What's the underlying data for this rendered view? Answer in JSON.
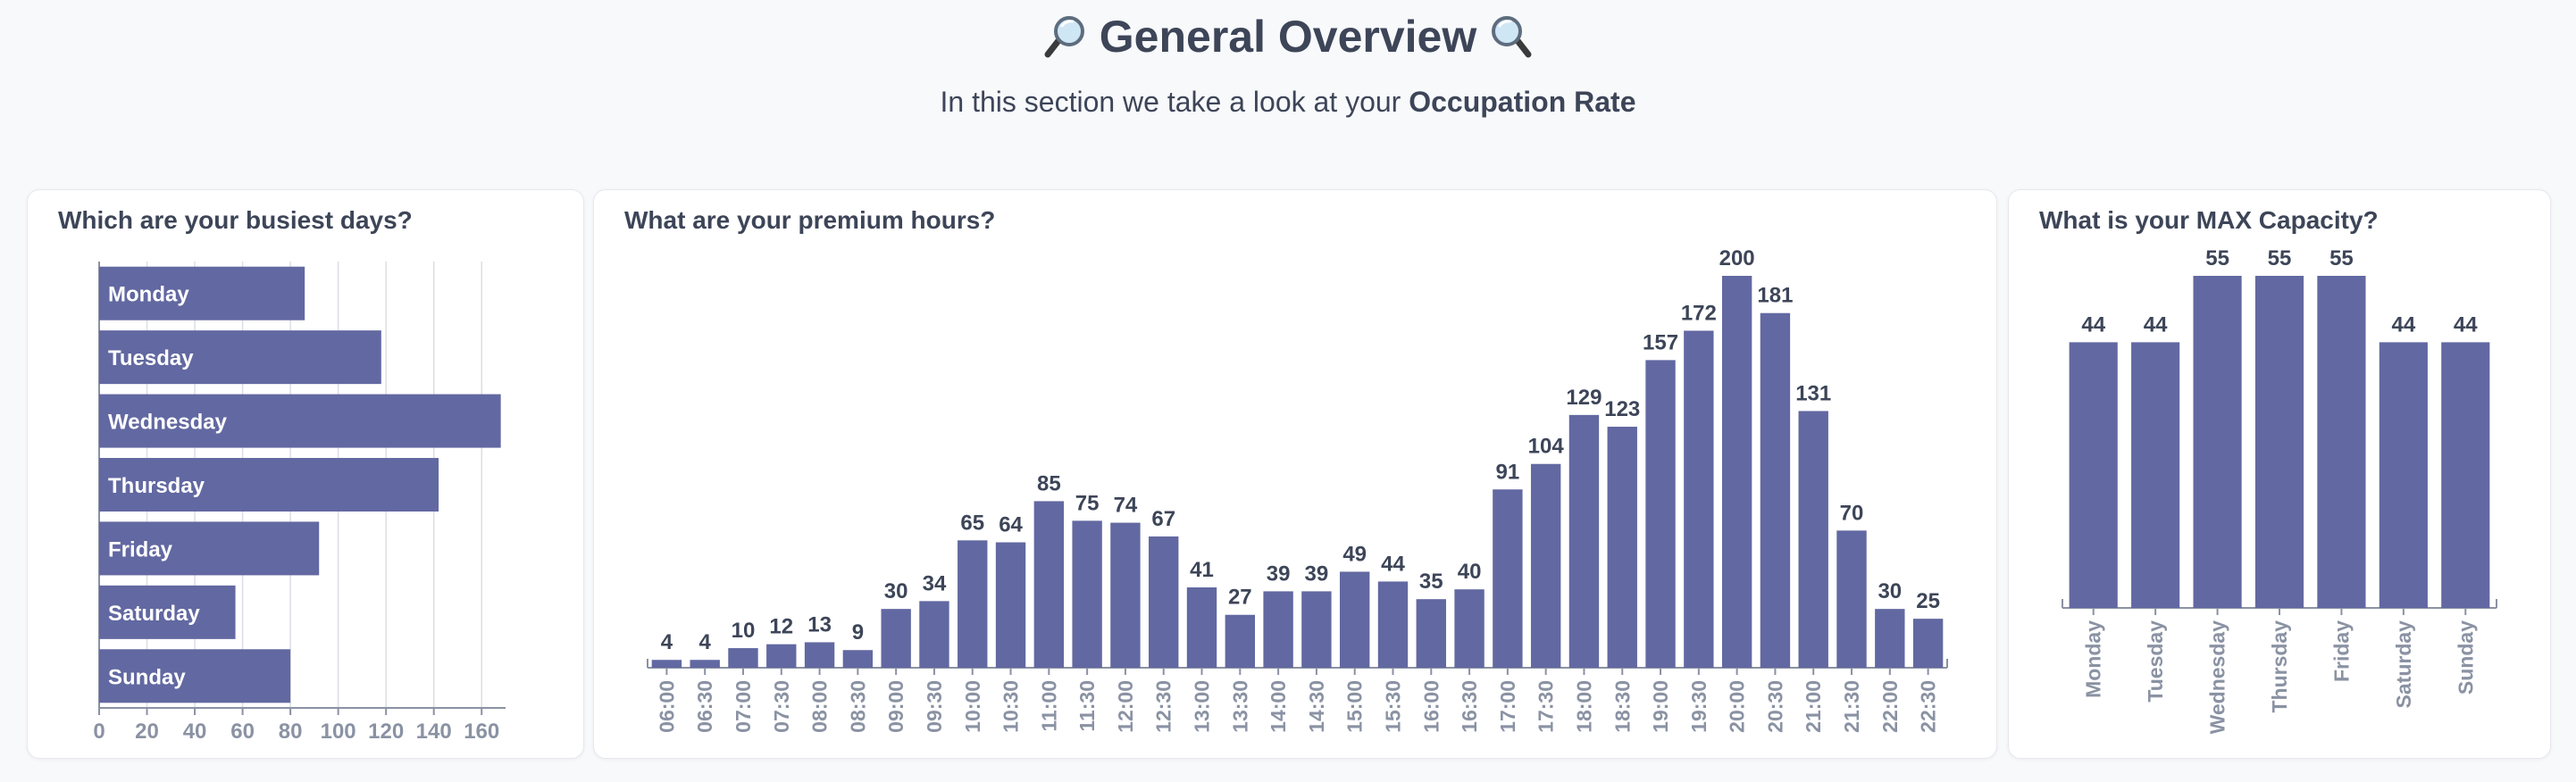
{
  "header": {
    "title": "General Overview",
    "subtitle_prefix": "In this section we take a look at your ",
    "subtitle_bold": "Occupation Rate",
    "icons": [
      "magnifier-left-icon",
      "magnifier-right-icon"
    ]
  },
  "colors": {
    "bar": "#6268a1",
    "text": "#3d4558",
    "axis": "#8a92a3",
    "grid": "#dcdde3"
  },
  "chart_data": [
    {
      "type": "bar",
      "orientation": "horizontal",
      "title": "Which are your busiest days?",
      "categories": [
        "Monday",
        "Tuesday",
        "Wednesday",
        "Thursday",
        "Friday",
        "Saturday",
        "Sunday"
      ],
      "values": [
        86,
        118,
        168,
        142,
        92,
        57,
        80
      ],
      "xlim": [
        0,
        170
      ],
      "xticks": [
        0,
        20,
        40,
        60,
        80,
        100,
        120,
        140,
        160
      ],
      "grid": true
    },
    {
      "type": "bar",
      "title": "What are your premium hours?",
      "categories": [
        "06:00",
        "06:30",
        "07:00",
        "07:30",
        "08:00",
        "08:30",
        "09:00",
        "09:30",
        "10:00",
        "10:30",
        "11:00",
        "11:30",
        "12:00",
        "12:30",
        "13:00",
        "13:30",
        "14:00",
        "14:30",
        "15:00",
        "15:30",
        "16:00",
        "16:30",
        "17:00",
        "17:30",
        "18:00",
        "18:30",
        "19:00",
        "19:30",
        "20:00",
        "20:30",
        "21:00",
        "21:30",
        "22:00",
        "22:30"
      ],
      "values": [
        4,
        4,
        10,
        12,
        13,
        9,
        30,
        34,
        65,
        64,
        85,
        75,
        74,
        67,
        41,
        27,
        39,
        39,
        49,
        44,
        35,
        40,
        91,
        104,
        129,
        123,
        157,
        172,
        200,
        181,
        131,
        70,
        30,
        25
      ],
      "ylim": [
        0,
        200
      ],
      "data_labels": true
    },
    {
      "type": "bar",
      "title": "What is your MAX Capacity?",
      "categories": [
        "Monday",
        "Tuesday",
        "Wednesday",
        "Thursday",
        "Friday",
        "Saturday",
        "Sunday"
      ],
      "values": [
        44,
        44,
        55,
        55,
        55,
        44,
        44
      ],
      "ylim": [
        0,
        55
      ],
      "data_labels": true
    }
  ]
}
